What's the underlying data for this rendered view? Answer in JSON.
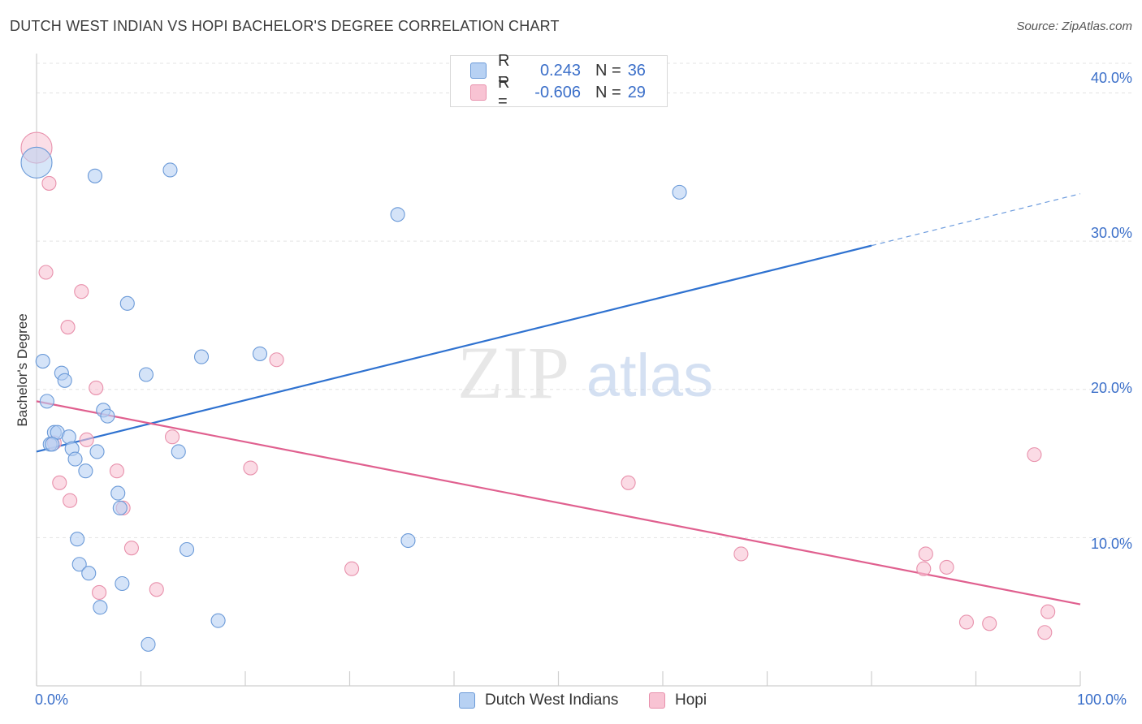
{
  "title": "DUTCH WEST INDIAN VS HOPI BACHELOR'S DEGREE CORRELATION CHART",
  "source": "Source: ZipAtlas.com",
  "watermark": {
    "zip": "ZIP",
    "atlas": "atlas"
  },
  "legend": {
    "r_label": "R =",
    "n_label": "N =",
    "series": [
      {
        "name": "Dutch West Indians",
        "r": "0.243",
        "n": "36"
      },
      {
        "name": "Hopi",
        "r": "-0.606",
        "n": "29"
      }
    ]
  },
  "colors": {
    "blue_fill": "#b7d1f3",
    "blue_stroke": "#6b9ad8",
    "blue_line": "#2f72d0",
    "pink_fill": "#f8c3d3",
    "pink_stroke": "#e891ac",
    "pink_line": "#e0608f",
    "tick_text": "#3b6fc9",
    "grid": "#e3e3e3"
  },
  "chart_data": {
    "type": "scatter",
    "title": "DUTCH WEST INDIAN VS HOPI BACHELOR'S DEGREE CORRELATION CHART",
    "xlabel": "",
    "ylabel": "Bachelor's Degree",
    "xlim": [
      0,
      100
    ],
    "ylim": [
      0,
      42
    ],
    "x_tick_labels": [
      "0.0%",
      "100.0%"
    ],
    "y_ticks": [
      10,
      20,
      30,
      40
    ],
    "y_tick_labels": [
      "10.0%",
      "20.0%",
      "30.0%",
      "40.0%"
    ],
    "grid": true,
    "series": [
      {
        "name": "Dutch West Indians",
        "points": [
          {
            "x": 0.0,
            "y": 35.3,
            "large": true
          },
          {
            "x": 5.6,
            "y": 34.4
          },
          {
            "x": 12.8,
            "y": 34.8
          },
          {
            "x": 34.6,
            "y": 31.8
          },
          {
            "x": 61.6,
            "y": 33.3
          },
          {
            "x": 8.7,
            "y": 25.8
          },
          {
            "x": 0.6,
            "y": 21.9
          },
          {
            "x": 2.4,
            "y": 21.1
          },
          {
            "x": 2.7,
            "y": 20.6
          },
          {
            "x": 10.5,
            "y": 21.0
          },
          {
            "x": 15.8,
            "y": 22.2
          },
          {
            "x": 21.4,
            "y": 22.4
          },
          {
            "x": 1.0,
            "y": 19.2
          },
          {
            "x": 6.4,
            "y": 18.6
          },
          {
            "x": 6.8,
            "y": 18.2
          },
          {
            "x": 1.7,
            "y": 17.1
          },
          {
            "x": 2.0,
            "y": 17.1
          },
          {
            "x": 3.1,
            "y": 16.8
          },
          {
            "x": 1.3,
            "y": 16.3
          },
          {
            "x": 1.5,
            "y": 16.3
          },
          {
            "x": 3.4,
            "y": 16.0
          },
          {
            "x": 5.8,
            "y": 15.8
          },
          {
            "x": 13.6,
            "y": 15.8
          },
          {
            "x": 3.7,
            "y": 15.3
          },
          {
            "x": 4.7,
            "y": 14.5
          },
          {
            "x": 7.8,
            "y": 13.0
          },
          {
            "x": 8.0,
            "y": 12.0
          },
          {
            "x": 3.9,
            "y": 9.9
          },
          {
            "x": 35.6,
            "y": 9.8
          },
          {
            "x": 14.4,
            "y": 9.2
          },
          {
            "x": 4.1,
            "y": 8.2
          },
          {
            "x": 5.0,
            "y": 7.6
          },
          {
            "x": 8.2,
            "y": 6.9
          },
          {
            "x": 6.1,
            "y": 5.3
          },
          {
            "x": 17.4,
            "y": 4.4
          },
          {
            "x": 10.7,
            "y": 2.8
          }
        ],
        "trend": {
          "x0": 0,
          "y0": 15.8,
          "x1": 80.0,
          "y1": 29.7,
          "dash_x1": 100,
          "dash_y1": 33.2
        }
      },
      {
        "name": "Hopi",
        "points": [
          {
            "x": 0.0,
            "y": 36.3,
            "large": true
          },
          {
            "x": 1.2,
            "y": 33.9
          },
          {
            "x": 0.9,
            "y": 27.9
          },
          {
            "x": 4.3,
            "y": 26.6
          },
          {
            "x": 3.0,
            "y": 24.2
          },
          {
            "x": 23.0,
            "y": 22.0
          },
          {
            "x": 5.7,
            "y": 20.1
          },
          {
            "x": 13.0,
            "y": 16.8
          },
          {
            "x": 4.8,
            "y": 16.6
          },
          {
            "x": 1.7,
            "y": 16.4
          },
          {
            "x": 20.5,
            "y": 14.7
          },
          {
            "x": 7.7,
            "y": 14.5
          },
          {
            "x": 56.7,
            "y": 13.7
          },
          {
            "x": 95.6,
            "y": 15.6
          },
          {
            "x": 2.2,
            "y": 13.7
          },
          {
            "x": 3.2,
            "y": 12.5
          },
          {
            "x": 8.3,
            "y": 12.0
          },
          {
            "x": 9.1,
            "y": 9.3
          },
          {
            "x": 30.2,
            "y": 7.9
          },
          {
            "x": 67.5,
            "y": 8.9
          },
          {
            "x": 85.2,
            "y": 8.9
          },
          {
            "x": 85.0,
            "y": 7.9
          },
          {
            "x": 87.2,
            "y": 8.0
          },
          {
            "x": 6.0,
            "y": 6.3
          },
          {
            "x": 11.5,
            "y": 6.5
          },
          {
            "x": 89.1,
            "y": 4.3
          },
          {
            "x": 91.3,
            "y": 4.2
          },
          {
            "x": 96.9,
            "y": 5.0
          },
          {
            "x": 96.6,
            "y": 3.6
          }
        ],
        "trend": {
          "x0": 0,
          "y0": 19.2,
          "x1": 100,
          "y1": 5.5
        }
      }
    ]
  }
}
